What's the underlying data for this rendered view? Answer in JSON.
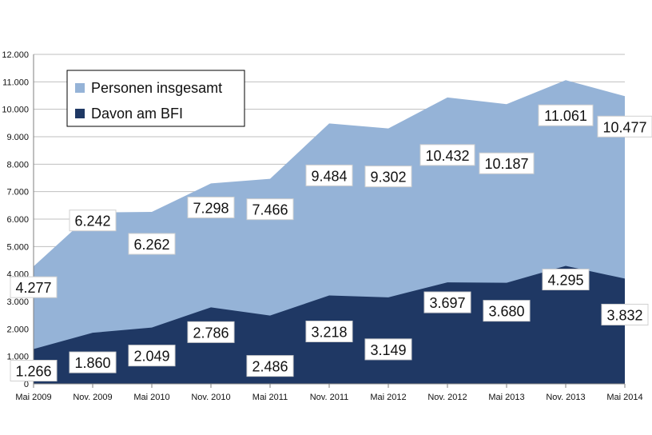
{
  "chart_data": {
    "type": "area",
    "categories": [
      "Mai 2009",
      "Nov. 2009",
      "Mai 2010",
      "Nov. 2010",
      "Mai 2011",
      "Nov. 2011",
      "Mai 2012",
      "Nov. 2012",
      "Mai 2013",
      "Nov. 2013",
      "Mai 2014"
    ],
    "series": [
      {
        "name": "Personen insgesamt",
        "color": "#95b3d7",
        "values": [
          4277,
          6242,
          6262,
          7298,
          7466,
          9484,
          9302,
          10432,
          10187,
          11061,
          10477
        ],
        "labels": [
          "4.277",
          "6.242",
          "6.262",
          "7.298",
          "7.466",
          "9.484",
          "9.302",
          "10.432",
          "10.187",
          "11.061",
          "10.477"
        ]
      },
      {
        "name": "Davon am BFI",
        "color": "#1f3864",
        "values": [
          1266,
          1860,
          2049,
          2786,
          2486,
          3218,
          3149,
          3697,
          3680,
          4295,
          3832
        ],
        "labels": [
          "1.266",
          "1.860",
          "2.049",
          "2.786",
          "2.486",
          "3.218",
          "3.149",
          "3.697",
          "3.680",
          "4.295",
          "3.832"
        ]
      }
    ],
    "ylim": [
      0,
      12000
    ],
    "yticks": [
      0,
      1000,
      2000,
      3000,
      4000,
      5000,
      6000,
      7000,
      8000,
      9000,
      10000,
      11000,
      12000
    ],
    "ytick_labels": [
      "0",
      "1.000",
      "2.000",
      "3.000",
      "4.000",
      "5.000",
      "6.000",
      "7.000",
      "8.000",
      "9.000",
      "10.000",
      "11.000",
      "12.000"
    ],
    "grid": true,
    "legend": "top-left"
  }
}
